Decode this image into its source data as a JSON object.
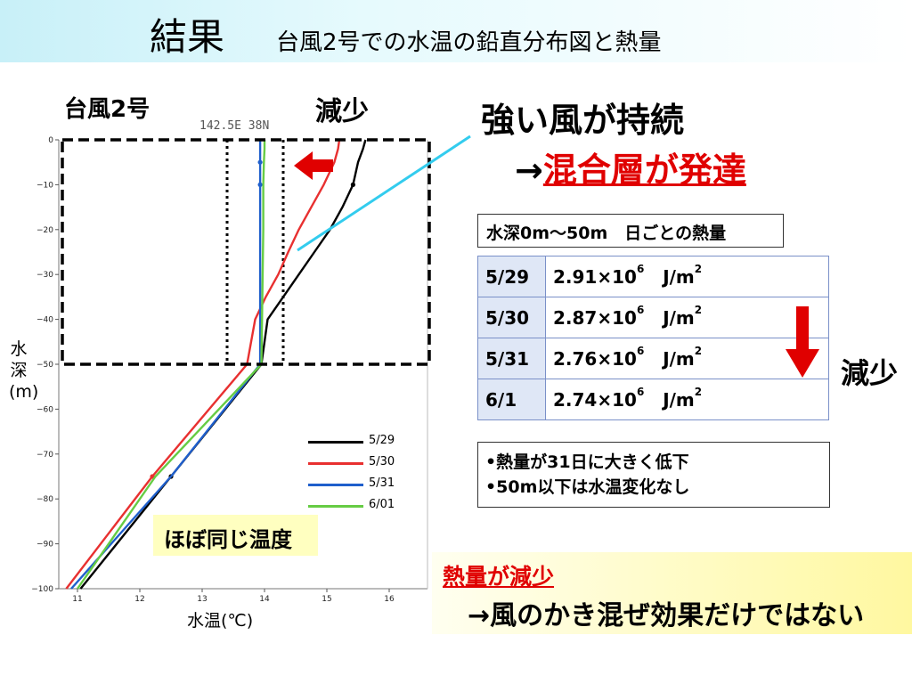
{
  "title": {
    "main": "結果",
    "sub": "台風2号での水温の鉛直分布図と熱量"
  },
  "labels": {
    "typhoon": "台風2号",
    "decrease_top": "減少",
    "strong_wind": "強い風が持続",
    "arrow": "→",
    "mixed_layer": "混合層が発達",
    "decrease_right": "減少",
    "same_temp": "ほぼ同じ温度",
    "xlabel": "水温(℃)",
    "ylabel": "水深(m)"
  },
  "heat_table": {
    "caption": "水深0m～50m　日ごとの熱量",
    "rows": [
      {
        "date": "5/29",
        "coef": "2.91×10",
        "exp": "6",
        "unit": "J/m",
        "unit_exp": "2"
      },
      {
        "date": "5/30",
        "coef": "2.87×10",
        "exp": "6",
        "unit": "J/m",
        "unit_exp": "2"
      },
      {
        "date": "5/31",
        "coef": "2.76×10",
        "exp": "6",
        "unit": "J/m",
        "unit_exp": "2"
      },
      {
        "date": "6/1",
        "coef": "2.74×10",
        "exp": "6",
        "unit": "J/m",
        "unit_exp": "2"
      }
    ]
  },
  "notes": [
    "•熱量が31日に大きく低下",
    "•50m以下は水温変化なし"
  ],
  "conclusion": {
    "line1": "熱量が減少",
    "line2": "→風のかき混ぜ効果だけではない"
  },
  "colors": {
    "red_accent": "#e00000",
    "cyan_line": "#33ccee"
  },
  "chart_data": {
    "type": "line",
    "top_label": "142.5E  38N",
    "xlabel": "水温(℃)",
    "ylabel": "水深(m)",
    "xlim": [
      10.7,
      16.5
    ],
    "ylim": [
      -100,
      0
    ],
    "xticks": [
      11,
      12,
      13,
      14,
      15,
      16
    ],
    "yticks": [
      0,
      -10,
      -20,
      -30,
      -40,
      -50,
      -60,
      -70,
      -80,
      -90,
      -100
    ],
    "series": [
      {
        "name": "5/29",
        "color": "#000000",
        "x": [
          15.62,
          15.58,
          15.5,
          15.42,
          15.25,
          15.05,
          14.8,
          14.55,
          14.3,
          14.05,
          13.95,
          12.5,
          11.05
        ],
        "y": [
          0,
          -2,
          -5,
          -10,
          -15,
          -20,
          -25,
          -30,
          -35,
          -40,
          -50,
          -75,
          -100
        ],
        "markers": [
          -10,
          -75
        ]
      },
      {
        "name": "5/30",
        "color": "#e83030",
        "x": [
          15.2,
          15.18,
          15.12,
          14.95,
          14.75,
          14.55,
          14.38,
          14.22,
          14.02,
          13.85,
          13.72,
          12.2,
          10.82
        ],
        "y": [
          0,
          -2,
          -5,
          -10,
          -15,
          -20,
          -25,
          -30,
          -35,
          -40,
          -50,
          -75,
          -100
        ],
        "markers": [
          -75
        ]
      },
      {
        "name": "5/31",
        "color": "#1f5fcc",
        "x": [
          13.93,
          13.93,
          13.93,
          13.93,
          13.93,
          13.93,
          13.93,
          13.93,
          13.93,
          12.5,
          10.9
        ],
        "y": [
          0,
          -2,
          -5,
          -10,
          -15,
          -20,
          -30,
          -40,
          -50,
          -75,
          -100
        ],
        "markers": [
          -5,
          -10
        ]
      },
      {
        "name": "6/01",
        "color": "#66cc44",
        "x": [
          14.0,
          14.0,
          13.99,
          13.98,
          13.98,
          13.98,
          13.97,
          13.96,
          13.95,
          12.25,
          11.0
        ],
        "y": [
          0,
          -2,
          -5,
          -10,
          -15,
          -20,
          -30,
          -40,
          -50,
          -75,
          -100
        ],
        "markers": []
      }
    ],
    "annotations": {
      "dotted_left_x": 13.4,
      "dotted_right_x": 14.3,
      "box_y": [
        0,
        -50
      ]
    }
  }
}
